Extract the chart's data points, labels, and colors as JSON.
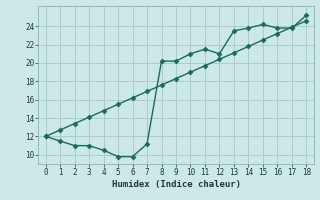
{
  "xlabel": "Humidex (Indice chaleur)",
  "bg_color": "#cce8e8",
  "grid_color": "#aacccc",
  "line_color": "#1a6b5a",
  "xlim": [
    -0.5,
    18.5
  ],
  "ylim": [
    9.0,
    26.2
  ],
  "xticks": [
    0,
    1,
    2,
    3,
    4,
    5,
    6,
    7,
    8,
    9,
    10,
    11,
    12,
    13,
    14,
    15,
    16,
    17,
    18
  ],
  "yticks": [
    10,
    12,
    14,
    16,
    18,
    20,
    22,
    24
  ],
  "line1_x": [
    0,
    1,
    2,
    3,
    4,
    5,
    6,
    7,
    8,
    9,
    10,
    11,
    12,
    13,
    14,
    15,
    16,
    17,
    18
  ],
  "line1_y": [
    12.0,
    11.5,
    11.0,
    11.0,
    10.5,
    9.8,
    9.8,
    11.2,
    20.2,
    20.2,
    21.0,
    21.5,
    21.0,
    23.5,
    23.8,
    24.2,
    23.8,
    23.8,
    25.2
  ],
  "line2_x": [
    0,
    1,
    2,
    3,
    4,
    5,
    6,
    7,
    8,
    9,
    10,
    11,
    12,
    13,
    14,
    15,
    16,
    17,
    18
  ],
  "line2_y": [
    12.0,
    12.7,
    13.4,
    14.1,
    14.8,
    15.5,
    16.2,
    16.9,
    17.6,
    18.3,
    19.0,
    19.7,
    20.4,
    21.1,
    21.8,
    22.5,
    23.2,
    23.9,
    24.6
  ]
}
